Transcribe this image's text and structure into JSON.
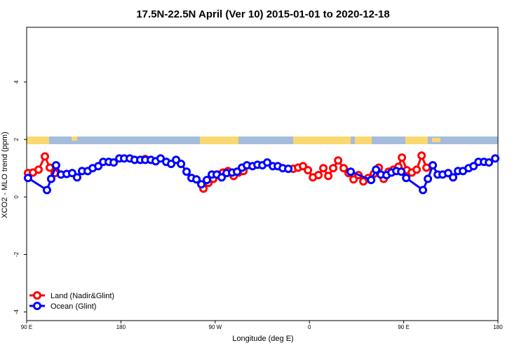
{
  "chart_data": {
    "type": "line",
    "title": "17.5N-22.5N April (Ver 10)   2015-01-01 to 2020-12-18",
    "xlabel": "Longitude (deg E)",
    "ylabel": "XCO2 - MLO trend (ppm)",
    "xlim": [
      90,
      540
    ],
    "ylim": [
      -4.3,
      5.9
    ],
    "xticks": [
      {
        "value": 90,
        "label": "90 E"
      },
      180,
      {
        "value": 270,
        "label": "90 W"
      },
      {
        "value": 360,
        "label": "0"
      },
      {
        "value": 450,
        "label": "90 E"
      },
      {
        "value": 540,
        "label": "180"
      }
    ],
    "yticks": [
      -4,
      -2,
      0,
      2,
      4
    ],
    "grid": false,
    "legend": "bottom-left",
    "series": [
      {
        "name": "Land (Nadir&Glint)",
        "color": "#ff0000",
        "x": [
          91.3,
          96,
          101.4,
          107.4,
          112.1,
          116.8,
          null,
          203.2,
          null,
          258.8,
          263.5,
          268.2,
          272.9,
          277.5,
          282.2,
          287.6,
          292.3,
          297,
          null,
          344.5,
          349.2,
          353.9,
          358.6,
          363.3,
          368.6,
          373.3,
          378,
          382.7,
          387.4,
          392.7,
          397.4,
          402.1,
          406.8,
          411.5,
          416.2,
          421.5,
          426.2,
          430.9,
          435.6,
          440.3,
          445,
          448.3,
          453,
          457.7,
          462.4,
          467.1,
          471.8
        ],
        "values": [
          0.83,
          0.85,
          0.95,
          1.41,
          1.02,
          0.83,
          null,
          1.32,
          null,
          0.29,
          0.49,
          0.63,
          0.78,
          0.85,
          0.9,
          0.73,
          0.85,
          0.9,
          null,
          0.98,
          1.02,
          1.07,
          0.93,
          0.68,
          0.76,
          1.0,
          0.73,
          1.0,
          1.27,
          1.0,
          0.83,
          0.61,
          0.76,
          0.54,
          0.66,
          0.8,
          1.02,
          0.63,
          0.88,
          0.95,
          1.05,
          1.37,
          0.93,
          0.85,
          0.95,
          1.44,
          1.02
        ]
      },
      {
        "name": "Ocean (Glint)",
        "color": "#0000ff",
        "x": [
          91.3,
          109.4,
          113.4,
          118.1,
          122.8,
          128.2,
          133.5,
          138.2,
          142.9,
          148.3,
          153,
          158.4,
          163.1,
          168.4,
          173.1,
          178.5,
          183.1,
          188.5,
          193.1,
          198.5,
          203.2,
          208.6,
          213.2,
          217.9,
          223.3,
          228,
          232.7,
          237.4,
          242.7,
          247.4,
          252.1,
          256.8,
          262.1,
          266.8,
          271.5,
          276.2,
          280.9,
          286.2,
          290.9,
          295.6,
          300.3,
          305.7,
          310.4,
          315.1,
          319.7,
          325.1,
          329.8,
          334.5,
          339.8,
          null,
          399.4,
          418.9,
          423.6,
          428.2,
          433.6,
          438.3,
          443,
          447.7,
          452.4,
          468.4,
          473.1,
          477.8,
          482.5,
          487.2,
          492.5,
          497.2,
          501.9,
          506.6,
          512,
          516.7,
          521.4,
          526.7,
          531.4,
          537.4
        ],
        "values": [
          0.66,
          0.24,
          0.63,
          1.1,
          0.78,
          0.8,
          0.83,
          0.68,
          0.9,
          0.9,
          1.0,
          1.07,
          1.22,
          1.22,
          1.2,
          1.34,
          1.34,
          1.34,
          1.29,
          1.29,
          1.29,
          1.29,
          1.24,
          1.34,
          1.22,
          1.15,
          1.29,
          1.15,
          0.88,
          0.66,
          0.61,
          0.44,
          0.59,
          0.78,
          0.78,
          0.68,
          0.83,
          0.85,
          0.88,
          1.02,
          1.1,
          1.07,
          1.12,
          1.1,
          1.2,
          1.07,
          1.07,
          1.0,
          0.98,
          null,
          0.88,
          0.59,
          0.95,
          0.78,
          0.76,
          0.85,
          0.9,
          0.88,
          0.66,
          0.24,
          0.63,
          1.1,
          0.78,
          0.78,
          0.83,
          0.68,
          0.9,
          0.9,
          1.0,
          1.07,
          1.22,
          1.22,
          1.2,
          1.34
        ]
      }
    ]
  }
}
